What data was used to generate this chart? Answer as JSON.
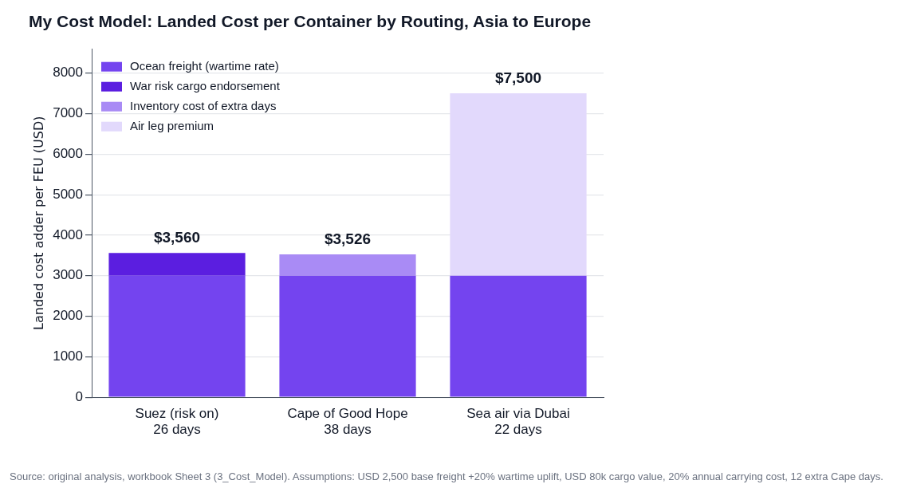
{
  "chart_data": {
    "type": "bar",
    "title": "My Cost Model: Landed Cost per Container by Routing, Asia to Europe",
    "categories": [
      "Suez (risk on)\n26 days",
      "Cape of Good Hope\n38 days",
      "Sea air via Dubai\n22 days"
    ],
    "series": [
      {
        "name": "Ocean freight (wartime rate)",
        "color": "#7444ef",
        "values": [
          3000,
          3000,
          3000
        ]
      },
      {
        "name": "War risk cargo endorsement",
        "color": "#5b1ee0",
        "values": [
          560,
          0,
          0
        ]
      },
      {
        "name": "Inventory cost of extra days",
        "color": "#a98bf5",
        "values": [
          0,
          526,
          0
        ]
      },
      {
        "name": "Air leg premium",
        "color": "#e2d9fc",
        "values": [
          0,
          0,
          4500
        ]
      }
    ],
    "stacked": true,
    "totals": [
      "$3,560",
      "$3,526",
      "$7,500"
    ],
    "ylabel": "Landed cost adder per FEU (USD)",
    "ylim": [
      0,
      8600
    ],
    "yticks": [
      0,
      1000,
      2000,
      3000,
      4000,
      5000,
      6000,
      7000,
      8000
    ],
    "grid": "y",
    "legend": "top left",
    "annotations": [
      "Source: original analysis, workbook Sheet 3 (3_Cost_Model). Assumptions: USD 2,500 base freight +20% wartime uplift, USD 80k cargo value, 20% annual carrying cost, 12 extra Cape days."
    ]
  }
}
